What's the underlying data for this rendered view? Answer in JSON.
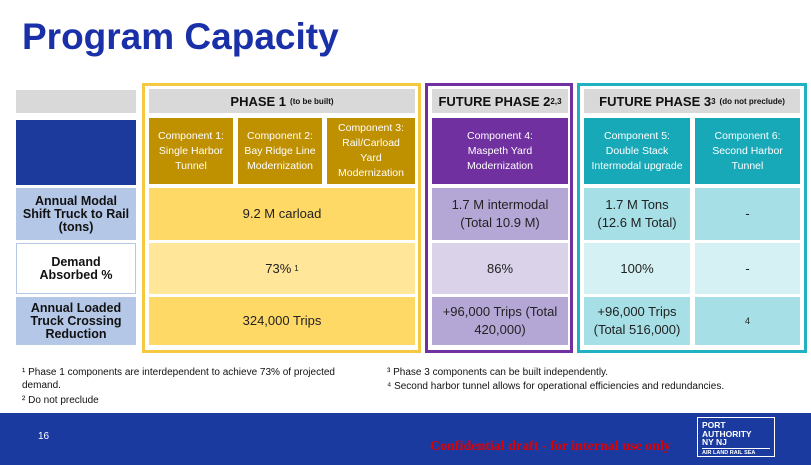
{
  "title": "Program Capacity",
  "phases": [
    {
      "name": "PHASE 1",
      "note": "(to be built)"
    },
    {
      "name": "FUTURE PHASE 2",
      "sup": "2,3"
    },
    {
      "name": "FUTURE PHASE 3",
      "sup": "3",
      "note": "(do not preclude)"
    }
  ],
  "components": [
    "Component 1: Single Harbor Tunnel",
    "Component 2: Bay Ridge Line Modernization",
    "Component 3: Rail/Carload Yard Modernization",
    "Component 4: Maspeth Yard Modernization",
    "Component 5: Double Stack Intermodal upgrade",
    "Component 6: Second Harbor Tunnel"
  ],
  "rows": [
    {
      "label": "Annual Modal Shift Truck to Rail (tons)",
      "cells": [
        "9.2 M carload",
        "1.7 M intermodal (Total 10.9 M)",
        "1.7 M Tons (12.6 M Total)",
        "-"
      ]
    },
    {
      "label": "Demand Absorbed %",
      "cells": [
        "73%",
        "86%",
        "100%",
        "-"
      ],
      "phase1_sup": "1"
    },
    {
      "label": "Annual Loaded Truck Crossing Reduction",
      "cells": [
        "324,000 Trips",
        "+96,000 Trips (Total 420,000)",
        "+96,000 Trips (Total 516,000)",
        "4"
      ]
    }
  ],
  "footnotes": [
    "¹ Phase 1 components are interdependent to achieve 73% of projected demand.",
    "² Do not preclude",
    "³ Phase 3 components can be built independently.",
    "⁴ Second harbor tunnel allows for operational efficiencies and redundancies."
  ],
  "footer": {
    "page": "16",
    "confidential": "Confidential draft - for internal use only",
    "logo": [
      "PORT",
      "AUTHORITY",
      "NY NJ",
      "AIR LAND RAIL SEA"
    ]
  }
}
